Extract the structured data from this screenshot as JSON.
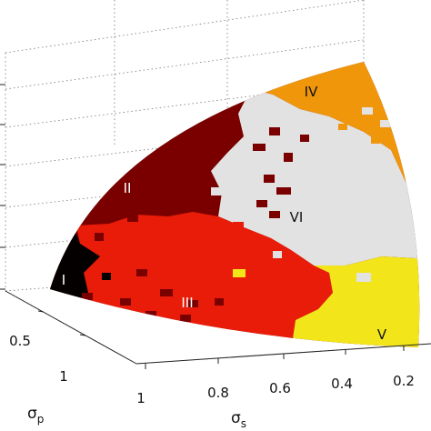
{
  "chart_data": {
    "type": "heatmap",
    "title": "",
    "axes": {
      "sigma_s": {
        "label_base": "σ",
        "label_sub": "s",
        "ticks": [
          "1",
          "0.8",
          "0.6",
          "0.4",
          "0.2"
        ],
        "range": [
          1,
          0
        ]
      },
      "sigma_p": {
        "label_base": "σ",
        "label_sub": "p",
        "ticks": [
          "0.5",
          "1"
        ],
        "range": [
          0,
          1
        ]
      }
    },
    "grid": true,
    "regions": [
      {
        "label": "I",
        "color": "#050000"
      },
      {
        "label": "II",
        "color": "#7a0000"
      },
      {
        "label": "III",
        "color": "#e81c08"
      },
      {
        "label": "IV",
        "color": "#f0960a"
      },
      {
        "label": "V",
        "color": "#f2e61a"
      },
      {
        "label": "VI",
        "color": "#e2e2e2"
      }
    ]
  }
}
